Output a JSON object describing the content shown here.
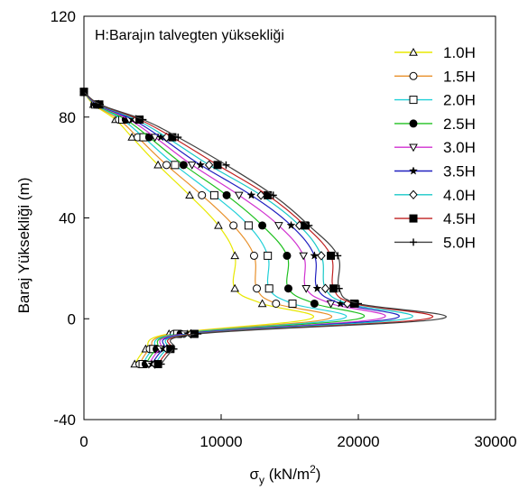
{
  "chart_data": {
    "type": "line",
    "annotation": "H:Barajın talvegten yüksekliği",
    "xlabel_symbol": "σ",
    "xlabel_subscript": "y",
    "xlabel_rest": " (kN/m",
    "xlabel_sup": "2",
    "xlabel_close": ")",
    "ylabel": "Baraj Yüksekliği (m)",
    "xlim": [
      0,
      30000
    ],
    "ylim": [
      -40,
      120
    ],
    "x_ticks": [
      0,
      10000,
      20000,
      30000
    ],
    "y_ticks": [
      -40,
      0,
      40,
      80,
      120
    ],
    "legend_position": "top-right",
    "heights": [
      90,
      85,
      79,
      72,
      61,
      49,
      37,
      25,
      12,
      6,
      0,
      -6,
      -12,
      -18
    ],
    "series": [
      {
        "name": "1.0H",
        "color": "#e8e800",
        "marker": "triangle",
        "values": [
          0,
          700,
          2300,
          3500,
          5400,
          7700,
          9800,
          11000,
          11000,
          13000,
          16500,
          6200,
          4500,
          3700
        ]
      },
      {
        "name": "1.5H",
        "color": "#e8902a",
        "marker": "circle-open",
        "values": [
          0,
          760,
          2550,
          3920,
          6020,
          8600,
          10900,
          12400,
          12600,
          14000,
          17800,
          6550,
          4800,
          4050
        ]
      },
      {
        "name": "2.0H",
        "color": "#20d0d8",
        "marker": "square-open",
        "values": [
          0,
          820,
          2800,
          4340,
          6640,
          9500,
          12000,
          13400,
          13500,
          15200,
          18800,
          6800,
          5050,
          4280
        ]
      },
      {
        "name": "2.5H",
        "color": "#20c020",
        "marker": "circle-filled",
        "values": [
          0,
          880,
          3050,
          4760,
          7260,
          10400,
          13000,
          14800,
          14900,
          16800,
          20000,
          7050,
          5300,
          4500
        ]
      },
      {
        "name": "3.0H",
        "color": "#d030d0",
        "marker": "triangle-down-open",
        "values": [
          0,
          940,
          3300,
          5180,
          7880,
          11300,
          14200,
          16000,
          16200,
          18000,
          21500,
          7300,
          5550,
          4730
        ]
      },
      {
        "name": "3.5H",
        "color": "#2020c0",
        "marker": "star",
        "values": [
          0,
          1000,
          3550,
          5600,
          8500,
          12200,
          15100,
          16800,
          17000,
          18700,
          22500,
          7550,
          5800,
          4950
        ]
      },
      {
        "name": "4.0H",
        "color": "#18c8c8",
        "marker": "diamond-open",
        "values": [
          0,
          1060,
          3800,
          6020,
          9120,
          12900,
          15700,
          17300,
          17600,
          19200,
          23500,
          7800,
          6050,
          5180
        ]
      },
      {
        "name": "4.5H",
        "color": "#c02020",
        "marker": "square-filled",
        "values": [
          0,
          1120,
          4050,
          6440,
          9740,
          13400,
          16100,
          18000,
          18200,
          19700,
          25000,
          8050,
          6300,
          5400
        ]
      },
      {
        "name": "5.0H",
        "color": "#404040",
        "marker": "plus",
        "values": [
          0,
          1180,
          4300,
          6860,
          10360,
          13800,
          16400,
          18500,
          18600,
          20000,
          26000,
          8300,
          6550,
          5630
        ]
      }
    ]
  }
}
